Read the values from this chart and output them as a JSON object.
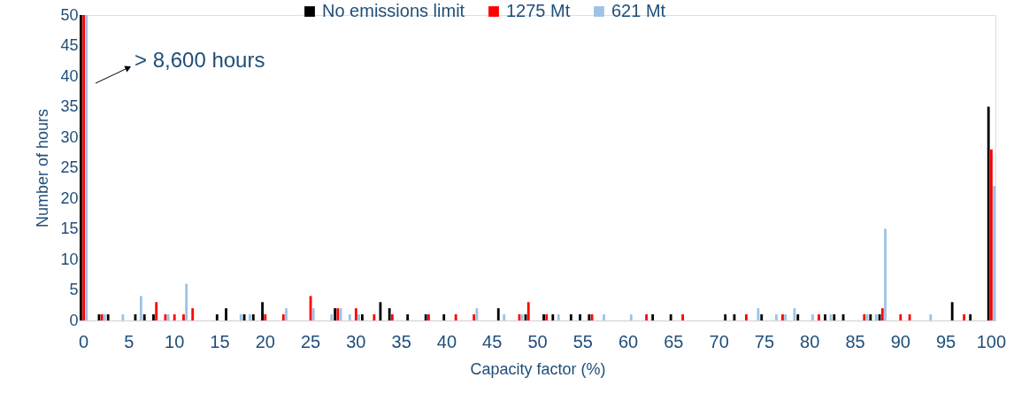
{
  "chart_data": {
    "type": "bar",
    "xlabel": "Capacity factor (%)",
    "ylabel": "Number of hours",
    "categories": [
      "0",
      null,
      null,
      null,
      null,
      "5",
      null,
      null,
      null,
      null,
      "10",
      null,
      null,
      null,
      null,
      "15",
      null,
      null,
      null,
      null,
      "20",
      null,
      null,
      null,
      null,
      "25",
      null,
      null,
      null,
      null,
      "30",
      null,
      null,
      null,
      null,
      "35",
      null,
      null,
      null,
      null,
      "40",
      null,
      null,
      null,
      null,
      "45",
      null,
      null,
      null,
      null,
      "50",
      null,
      null,
      null,
      null,
      "55",
      null,
      null,
      null,
      null,
      "60",
      null,
      null,
      null,
      null,
      "65",
      null,
      null,
      null,
      null,
      "70",
      null,
      null,
      null,
      null,
      "75",
      null,
      null,
      null,
      null,
      "80",
      null,
      null,
      null,
      null,
      "85",
      null,
      null,
      null,
      null,
      "90",
      null,
      null,
      null,
      null,
      "95",
      null,
      null,
      null,
      null,
      "100"
    ],
    "series": [
      {
        "name": "No emissions limit",
        "color": "#000000",
        "values": [
          50,
          0,
          1,
          1,
          0,
          0,
          1,
          1,
          1,
          0,
          0,
          0,
          0,
          0,
          0,
          1,
          2,
          0,
          1,
          1,
          3,
          0,
          0,
          0,
          0,
          0,
          0,
          0,
          2,
          0,
          0,
          1,
          0,
          3,
          2,
          0,
          1,
          0,
          1,
          0,
          1,
          0,
          0,
          0,
          0,
          0,
          2,
          0,
          0,
          1,
          0,
          1,
          1,
          0,
          1,
          1,
          1,
          0,
          0,
          0,
          0,
          0,
          0,
          1,
          0,
          1,
          0,
          0,
          0,
          0,
          0,
          1,
          1,
          0,
          0,
          1,
          0,
          0,
          0,
          1,
          0,
          0,
          1,
          1,
          1,
          0,
          0,
          1,
          1,
          0,
          0,
          0,
          0,
          0,
          0,
          0,
          3,
          0,
          1,
          0,
          35
        ]
      },
      {
        "name": "1275 Mt",
        "color": "#ff0000",
        "values": [
          50,
          0,
          1,
          0,
          0,
          0,
          0,
          0,
          3,
          1,
          1,
          1,
          2,
          0,
          0,
          0,
          0,
          0,
          0,
          0,
          1,
          0,
          1,
          0,
          0,
          4,
          0,
          0,
          2,
          0,
          2,
          0,
          1,
          0,
          1,
          0,
          0,
          0,
          1,
          0,
          0,
          1,
          0,
          1,
          0,
          0,
          0,
          0,
          1,
          3,
          0,
          1,
          0,
          0,
          0,
          0,
          1,
          0,
          0,
          0,
          0,
          0,
          1,
          0,
          0,
          0,
          1,
          0,
          0,
          0,
          0,
          0,
          0,
          1,
          0,
          0,
          0,
          1,
          0,
          0,
          0,
          1,
          0,
          0,
          0,
          0,
          1,
          0,
          2,
          0,
          1,
          1,
          0,
          0,
          0,
          0,
          0,
          1,
          0,
          0,
          28
        ]
      },
      {
        "name": "621 Mt",
        "color": "#9dc3e6",
        "values": [
          50,
          0,
          1,
          0,
          1,
          0,
          4,
          0,
          0,
          1,
          0,
          6,
          0,
          0,
          0,
          0,
          0,
          1,
          1,
          0,
          0,
          0,
          2,
          0,
          0,
          2,
          0,
          1,
          2,
          1,
          1,
          0,
          0,
          0,
          0,
          0,
          0,
          0,
          0,
          0,
          0,
          0,
          0,
          2,
          0,
          0,
          1,
          0,
          1,
          0,
          0,
          0,
          1,
          0,
          0,
          0,
          0,
          1,
          0,
          0,
          1,
          0,
          0,
          0,
          0,
          0,
          0,
          0,
          0,
          0,
          0,
          0,
          0,
          0,
          2,
          0,
          1,
          1,
          2,
          0,
          1,
          0,
          1,
          0,
          0,
          0,
          1,
          1,
          15,
          0,
          0,
          0,
          0,
          1,
          0,
          0,
          0,
          0,
          0,
          0,
          22
        ]
      }
    ],
    "ylim": [
      0,
      50
    ],
    "yticks": [
      0,
      5,
      10,
      15,
      20,
      25,
      30,
      35,
      40,
      45,
      50
    ],
    "annotations": [
      "> 8,600 hours"
    ],
    "legend": "top",
    "grid": false
  }
}
